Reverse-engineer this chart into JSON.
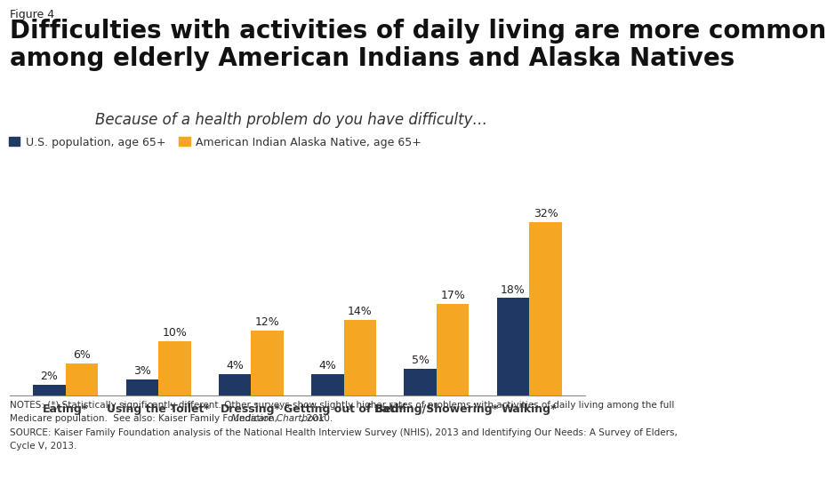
{
  "figure_label": "Figure 4",
  "title": "Difficulties with activities of daily living are more common\namong elderly American Indians and Alaska Natives",
  "subtitle": "Because of a health problem do you have difficulty…",
  "categories": [
    "Eating*",
    "Using the Toilet*",
    "Dressing*",
    "Getting out of Bed*",
    "Bathing/Showering*",
    "Walking*"
  ],
  "us_values": [
    2,
    3,
    4,
    4,
    5,
    18
  ],
  "aian_values": [
    6,
    10,
    12,
    14,
    17,
    32
  ],
  "us_color": "#1F3864",
  "aian_color": "#F5A623",
  "us_label": "U.S. population, age 65+",
  "aian_label": "American Indian Alaska Native, age 65+",
  "bar_width": 0.35,
  "ylim": [
    0,
    38
  ],
  "notes_line1": "NOTES: (*) Statistically significantly different. Other surveys show slightly higher rates of problems with activities of daily living among the full",
  "notes_line2": "Medicare population.  See also: Kaiser Family Foundation, ",
  "notes_line2_italic": "Medicare Chartbook",
  "notes_line2_end": ", 2010.",
  "notes_line3": "SOURCE: Kaiser Family Foundation analysis of the National Health Interview Survey (NHIS), 2013 and Identifying Our Needs: A Survey of Elders,",
  "notes_line4": "Cycle V, 2013.",
  "background_color": "#FFFFFF",
  "title_fontsize": 20,
  "subtitle_fontsize": 12,
  "label_fontsize": 9,
  "legend_fontsize": 9,
  "bar_label_fontsize": 9,
  "notes_fontsize": 7.5,
  "figure_label_fontsize": 9
}
